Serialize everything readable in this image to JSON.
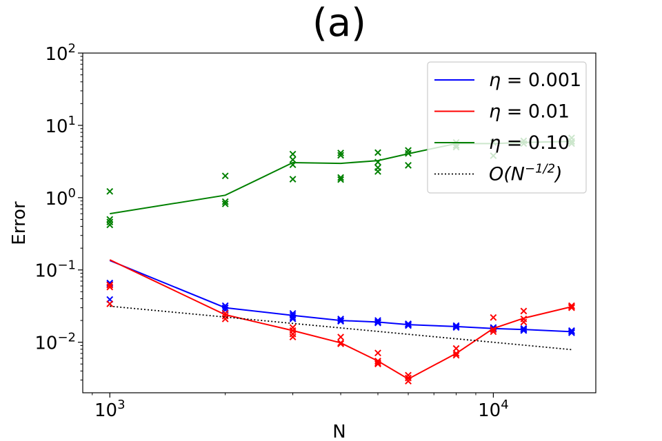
{
  "chart_data": {
    "type": "line",
    "title": "(a)",
    "xlabel": "N",
    "ylabel": "Error",
    "xscale": "log",
    "yscale": "log",
    "xlim": [
      850,
      18500
    ],
    "ylim": [
      0.002,
      100
    ],
    "x_ticks": [
      {
        "value": 1000,
        "label": "10",
        "exp": "3"
      },
      {
        "value": 10000,
        "label": "10",
        "exp": "4"
      }
    ],
    "y_ticks": [
      {
        "value": 0.01,
        "label": "10",
        "exp": "−2"
      },
      {
        "value": 0.1,
        "label": "10",
        "exp": "−1"
      },
      {
        "value": 1,
        "label": "10",
        "exp": "0"
      },
      {
        "value": 10,
        "label": "10",
        "exp": "1"
      },
      {
        "value": 100,
        "label": "10",
        "exp": "2"
      }
    ],
    "legend_position": "top-right",
    "series": [
      {
        "name": "η = 0.001",
        "legend_var": "η",
        "legend_val": " = 0.001",
        "color": "#0000ff",
        "style": "solid",
        "x": [
          1000,
          2000,
          3000,
          4000,
          5000,
          6000,
          8000,
          10000,
          12000,
          16000
        ],
        "y": [
          0.135,
          0.03,
          0.0235,
          0.02,
          0.019,
          0.0175,
          0.0165,
          0.0155,
          0.015,
          0.014
        ],
        "scatter": [
          [
            1000,
            0.066
          ],
          [
            1000,
            0.063
          ],
          [
            1000,
            0.039
          ],
          [
            2000,
            0.032
          ],
          [
            2000,
            0.03
          ],
          [
            2000,
            0.028
          ],
          [
            3000,
            0.025
          ],
          [
            3000,
            0.0235
          ],
          [
            3000,
            0.022
          ],
          [
            3000,
            0.021
          ],
          [
            4000,
            0.021
          ],
          [
            4000,
            0.02
          ],
          [
            4000,
            0.0195
          ],
          [
            5000,
            0.02
          ],
          [
            5000,
            0.019
          ],
          [
            5000,
            0.0185
          ],
          [
            6000,
            0.018
          ],
          [
            6000,
            0.0175
          ],
          [
            6000,
            0.017
          ],
          [
            8000,
            0.017
          ],
          [
            8000,
            0.0165
          ],
          [
            8000,
            0.016
          ],
          [
            10000,
            0.016
          ],
          [
            10000,
            0.0155
          ],
          [
            10000,
            0.015
          ],
          [
            12000,
            0.0155
          ],
          [
            12000,
            0.015
          ],
          [
            12000,
            0.0145
          ],
          [
            16000,
            0.0145
          ],
          [
            16000,
            0.014
          ],
          [
            16000,
            0.0135
          ]
        ]
      },
      {
        "name": "η = 0.01",
        "legend_var": "η",
        "legend_val": " = 0.01",
        "color": "#ff0000",
        "style": "solid",
        "x": [
          1000,
          2000,
          3000,
          4000,
          5000,
          6000,
          8000,
          10000,
          12000,
          16000
        ],
        "y": [
          0.138,
          0.024,
          0.0145,
          0.0098,
          0.0055,
          0.0031,
          0.007,
          0.0155,
          0.0215,
          0.031
        ],
        "scatter": [
          [
            1000,
            0.062
          ],
          [
            1000,
            0.058
          ],
          [
            1000,
            0.034
          ],
          [
            2000,
            0.025
          ],
          [
            2000,
            0.023
          ],
          [
            2000,
            0.021
          ],
          [
            3000,
            0.016
          ],
          [
            3000,
            0.0145
          ],
          [
            3000,
            0.013
          ],
          [
            3000,
            0.0118
          ],
          [
            4000,
            0.0118
          ],
          [
            4000,
            0.0098
          ],
          [
            4000,
            0.0095
          ],
          [
            5000,
            0.0071
          ],
          [
            5000,
            0.0055
          ],
          [
            5000,
            0.0052
          ],
          [
            5000,
            0.005
          ],
          [
            6000,
            0.0035
          ],
          [
            6000,
            0.0032
          ],
          [
            6000,
            0.0029
          ],
          [
            8000,
            0.0082
          ],
          [
            8000,
            0.007
          ],
          [
            8000,
            0.0066
          ],
          [
            10000,
            0.022
          ],
          [
            10000,
            0.015
          ],
          [
            10000,
            0.014
          ],
          [
            12000,
            0.027
          ],
          [
            12000,
            0.021
          ],
          [
            12000,
            0.019
          ],
          [
            16000,
            0.032
          ],
          [
            16000,
            0.031
          ],
          [
            16000,
            0.03
          ]
        ]
      },
      {
        "name": "η = 0.10",
        "legend_var": "η",
        "legend_val": " = 0.10",
        "color": "#008000",
        "style": "solid",
        "x": [
          1000,
          2000,
          3000,
          4000,
          5000,
          6000,
          8000,
          10000,
          12000,
          16000
        ],
        "y": [
          0.6,
          1.08,
          3.05,
          2.98,
          3.25,
          4.05,
          5.6,
          5.6,
          5.8,
          6.0
        ],
        "scatter": [
          [
            1000,
            1.22
          ],
          [
            1000,
            0.5
          ],
          [
            1000,
            0.46
          ],
          [
            1000,
            0.42
          ],
          [
            2000,
            2.0
          ],
          [
            2000,
            0.88
          ],
          [
            2000,
            0.82
          ],
          [
            3000,
            4.0
          ],
          [
            3000,
            3.35
          ],
          [
            3000,
            2.85
          ],
          [
            3000,
            1.8
          ],
          [
            4000,
            4.15
          ],
          [
            4000,
            3.85
          ],
          [
            4000,
            1.9
          ],
          [
            4000,
            1.78
          ],
          [
            5000,
            4.2
          ],
          [
            5000,
            3.1
          ],
          [
            5000,
            2.6
          ],
          [
            5000,
            2.3
          ],
          [
            6000,
            4.5
          ],
          [
            6000,
            4.1
          ],
          [
            6000,
            2.8
          ],
          [
            8000,
            5.8
          ],
          [
            8000,
            5.3
          ],
          [
            8000,
            5.0
          ],
          [
            10000,
            5.8
          ],
          [
            10000,
            3.8
          ],
          [
            12000,
            6.1
          ],
          [
            12000,
            5.6
          ],
          [
            16000,
            6.7
          ],
          [
            16000,
            6.0
          ],
          [
            16000,
            5.6
          ]
        ]
      },
      {
        "name": "O(N^-1/2)",
        "legend_var": "O(N",
        "legend_exp": "−1/2",
        "legend_tail": ")",
        "color": "#000000",
        "style": "dotted",
        "x": [
          1000,
          16000
        ],
        "y": [
          0.0315,
          0.0079
        ],
        "scatter": []
      }
    ]
  }
}
